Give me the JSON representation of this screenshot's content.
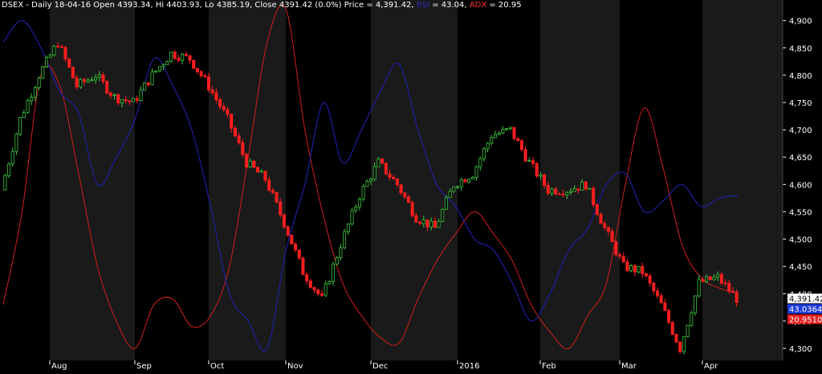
{
  "header": {
    "ticker": "DSEX - Daily 18-04-16 Open 4393.34, Hi 4403.93, Lo 4385.19, Close 4391.42 (0.0%) Price = 4,391.42,",
    "rsi_label": "RSI",
    "rsi_value": " = 43.04,",
    "adx_label": "ADX",
    "adx_value": " = 20.95"
  },
  "colors": {
    "background": "#000000",
    "band": "#1a1a1a",
    "up_candle": "#3cc83c",
    "down_candle": "#ff1e1e",
    "rsi": "#1e1ea0",
    "adx": "#d21e1e",
    "axis_text": "#ffffff",
    "price_badge": "#ffffff",
    "rsi_badge": "#1e3cdc",
    "adx_badge": "#e61e1e"
  },
  "chart_data": {
    "type": "line",
    "title": "",
    "x": [
      "2015-07-20",
      "2015-07-25",
      "2015-08-01",
      "2015-08-08",
      "2015-08-15",
      "2015-08-22",
      "2015-08-29",
      "2015-09-05",
      "2015-09-12",
      "2015-09-19",
      "2015-09-26",
      "2015-10-03",
      "2015-10-10",
      "2015-10-17",
      "2015-10-24",
      "2015-10-31",
      "2015-11-07",
      "2015-11-14",
      "2015-11-21",
      "2015-11-28",
      "2015-12-05",
      "2015-12-12",
      "2015-12-19",
      "2015-12-26",
      "2016-01-02",
      "2016-01-09",
      "2016-01-16",
      "2016-01-23",
      "2016-01-30",
      "2016-02-06",
      "2016-02-13",
      "2016-02-20",
      "2016-02-27",
      "2016-03-05",
      "2016-03-12",
      "2016-03-19",
      "2016-03-26",
      "2016-04-02",
      "2016-04-09",
      "2016-04-18"
    ],
    "x_tick_labels": [
      "Aug",
      "Sep",
      "Oct",
      "Nov",
      "Dec",
      "2016",
      "Feb",
      "Mar",
      "Apr"
    ],
    "y_tick_labels": [
      "4,300",
      "4,350",
      "4,400",
      "4,450",
      "4,500",
      "4,550",
      "4,600",
      "4,650",
      "4,700",
      "4,750",
      "4,800",
      "4,850",
      "4,900"
    ],
    "ylim": [
      4278,
      4920
    ],
    "series": [
      {
        "name": "DSEX",
        "values": [
          4590,
          4720,
          4800,
          4860,
          4780,
          4800,
          4760,
          4750,
          4800,
          4840,
          4830,
          4780,
          4720,
          4640,
          4610,
          4530,
          4440,
          4390,
          4490,
          4580,
          4640,
          4600,
          4540,
          4520,
          4600,
          4620,
          4690,
          4700,
          4640,
          4590,
          4590,
          4600,
          4520,
          4450,
          4440,
          4380,
          4300,
          4420,
          4430,
          4391.42
        ]
      },
      {
        "name": "RSI",
        "values": [
          4860,
          4900,
          4850,
          4770,
          4730,
          4600,
          4650,
          4720,
          4830,
          4780,
          4700,
          4560,
          4400,
          4350,
          4300,
          4480,
          4600,
          4750,
          4640,
          4700,
          4770,
          4820,
          4700,
          4600,
          4560,
          4500,
          4480,
          4420,
          4350,
          4400,
          4480,
          4520,
          4600,
          4620,
          4550,
          4570,
          4600,
          4560,
          4575,
          4580
        ]
      },
      {
        "name": "ADX",
        "values": [
          4380,
          4550,
          4800,
          4780,
          4620,
          4450,
          4350,
          4300,
          4380,
          4390,
          4340,
          4360,
          4450,
          4650,
          4860,
          4920,
          4700,
          4540,
          4420,
          4360,
          4320,
          4310,
          4390,
          4460,
          4510,
          4550,
          4510,
          4460,
          4380,
          4330,
          4300,
          4360,
          4420,
          4600,
          4740,
          4630,
          4490,
          4430,
          4410,
          4400
        ]
      }
    ],
    "last_price": "4,391.42",
    "rsi_badge": "43.0364",
    "adx_badge": "20.9510"
  }
}
